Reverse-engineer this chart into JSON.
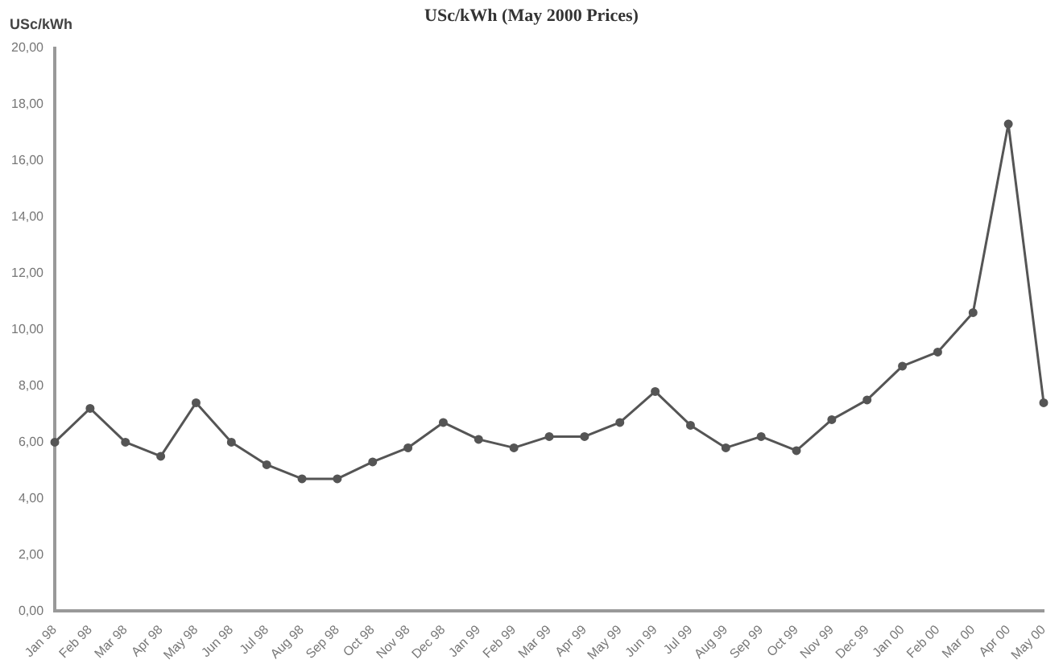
{
  "chart_data": {
    "type": "line",
    "title": "USc/kWh (May 2000 Prices)",
    "ylabel": "USc/kWh",
    "categories": [
      "Jan 98",
      "Feb 98",
      "Mar 98",
      "Apr 98",
      "May 98",
      "Jun 98",
      "Jul 98",
      "Aug 98",
      "Sep 98",
      "Oct 98",
      "Nov 98",
      "Dec 98",
      "Jan 99",
      "Feb 99",
      "Mar 99",
      "Apr 99",
      "May 99",
      "Jun 99",
      "Jul 99",
      "Aug 99",
      "Sep 99",
      "Oct 99",
      "Nov 99",
      "Dec 99",
      "Jan 00",
      "Feb 00",
      "Mar 00",
      "Apr 00",
      "May 00"
    ],
    "series": [
      {
        "color": "#555555",
        "values": [
          6.0,
          7.2,
          6.0,
          5.5,
          7.4,
          6.0,
          5.2,
          4.7,
          4.7,
          5.3,
          5.8,
          6.7,
          6.1,
          5.8,
          6.2,
          6.2,
          6.7,
          7.8,
          6.6,
          5.8,
          6.2,
          5.7,
          6.8,
          7.5,
          8.7,
          9.2,
          10.6,
          17.3,
          7.4
        ]
      }
    ],
    "ylim": [
      0,
      20
    ],
    "yticks": [
      {
        "value": 0,
        "label": "0,00"
      },
      {
        "value": 2,
        "label": "2,00"
      },
      {
        "value": 4,
        "label": "4,00"
      },
      {
        "value": 6,
        "label": "6,00"
      },
      {
        "value": 8,
        "label": "8,00"
      },
      {
        "value": 10,
        "label": "10,00"
      },
      {
        "value": 12,
        "label": "12,00"
      },
      {
        "value": 14,
        "label": "14,00"
      },
      {
        "value": 16,
        "label": "16,00"
      },
      {
        "value": 18,
        "label": "18,00"
      },
      {
        "value": 20,
        "label": "20,00"
      }
    ],
    "grid": false,
    "legend": false,
    "marker": "circle",
    "line_style": "solid"
  }
}
